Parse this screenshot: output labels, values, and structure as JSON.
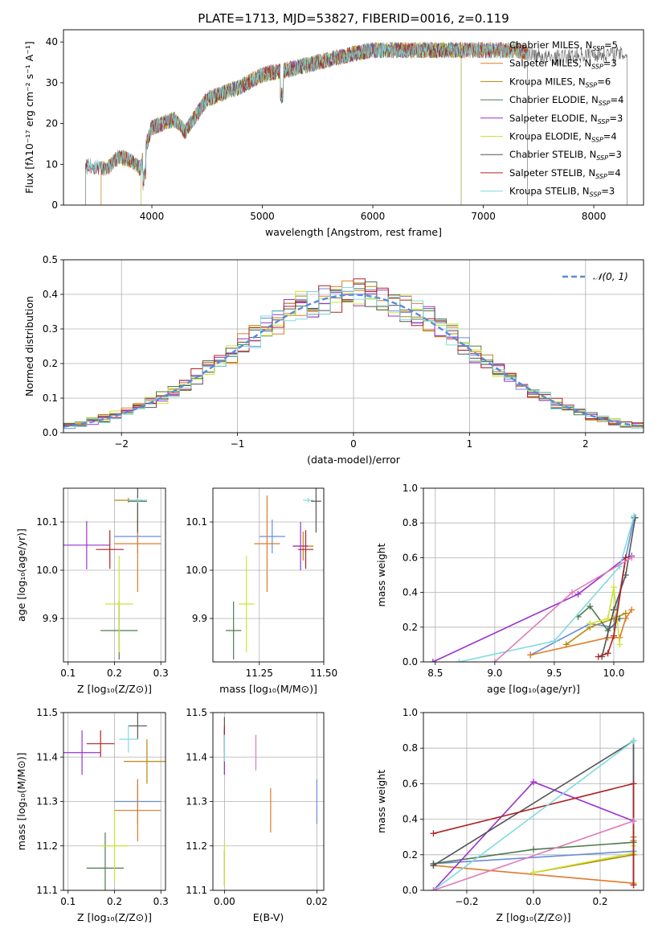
{
  "figure_title": "PLATE=1713, MJD=53827, FIBERID=0016, z=0.119",
  "series_colors": [
    "#6b8cdb",
    "#e07b2a",
    "#b8860b",
    "#4f7a4f",
    "#9932cc",
    "#c8e632",
    "#555555",
    "#b22222",
    "#7fdce0"
  ],
  "chart_data": [
    {
      "id": "spectrum",
      "type": "line",
      "title": "PLATE=1713, MJD=53827, FIBERID=0016, z=0.119",
      "xlabel": "wavelength [Angstrom, rest frame]",
      "ylabel": "Flux [fλ10⁻¹⁷ erg cm⁻² s⁻¹ A⁻¹]",
      "xlim": [
        3200,
        8450
      ],
      "ylim": [
        0,
        43
      ],
      "xticks": [
        4000,
        5000,
        6000,
        7000,
        8000
      ],
      "yticks": [
        0,
        10,
        20,
        30,
        40
      ],
      "grid": false,
      "legend_position": "right",
      "continuum_knots": [
        [
          3400,
          9.5
        ],
        [
          3600,
          9
        ],
        [
          3700,
          12
        ],
        [
          3800,
          11
        ],
        [
          3900,
          9
        ],
        [
          3950,
          15
        ],
        [
          4000,
          19
        ],
        [
          4200,
          21
        ],
        [
          4300,
          18
        ],
        [
          4500,
          26
        ],
        [
          4800,
          29
        ],
        [
          5000,
          32
        ],
        [
          5200,
          33
        ],
        [
          5500,
          35
        ],
        [
          5800,
          37
        ],
        [
          6000,
          38
        ],
        [
          6500,
          38
        ],
        [
          7000,
          38
        ],
        [
          7300,
          38
        ],
        [
          7600,
          36
        ],
        [
          8000,
          37
        ],
        [
          8300,
          37
        ]
      ],
      "series": [
        {
          "label": "Chabrier MILES, N",
          "sub": "SSP",
          "suffix": "=5",
          "wmin": 3540,
          "wmax": 7400
        },
        {
          "label": "Salpeter MILES, N",
          "sub": "SSP",
          "suffix": "=3",
          "wmin": 3540,
          "wmax": 7400
        },
        {
          "label": "Kroupa MILES, N",
          "sub": "SSP",
          "suffix": "=6",
          "wmin": 3540,
          "wmax": 7400
        },
        {
          "label": "Chabrier ELODIE, N",
          "sub": "SSP",
          "suffix": "=4",
          "wmin": 3900,
          "wmax": 6800
        },
        {
          "label": "Salpeter ELODIE, N",
          "sub": "SSP",
          "suffix": "=3",
          "wmin": 3900,
          "wmax": 6800
        },
        {
          "label": "Kroupa ELODIE, N",
          "sub": "SSP",
          "suffix": "=4",
          "wmin": 3900,
          "wmax": 6800
        },
        {
          "label": "Chabrier STELIB, N",
          "sub": "SSP",
          "suffix": "=3",
          "wmin": 3400,
          "wmax": 8300
        },
        {
          "label": "Salpeter STELIB, N",
          "sub": "SSP",
          "suffix": "=4",
          "wmin": 3400,
          "wmax": 7400
        },
        {
          "label": "Kroupa STELIB, N",
          "sub": "SSP",
          "suffix": "=3",
          "wmin": 3400,
          "wmax": 7400
        }
      ]
    },
    {
      "id": "residuals",
      "type": "histogram",
      "xlabel": "(data-model)/error",
      "ylabel": "Normed distribution",
      "xlim": [
        -2.5,
        2.5
      ],
      "ylim": [
        0,
        0.5
      ],
      "xticks": [
        -2,
        -1,
        0,
        1,
        2
      ],
      "yticks": [
        0.0,
        0.1,
        0.2,
        0.3,
        0.4,
        0.5
      ],
      "grid": true,
      "legend_entry": "𝒩(0, 1)",
      "legend_position": "top-right",
      "bin_width": 0.1
    },
    {
      "id": "age_Z",
      "type": "errorbar",
      "xlabel": "Z [log₁₀(Z/Z⊙)]",
      "ylabel": "age  [log₁₀(age/yr)]",
      "xlim": [
        0.09,
        0.31
      ],
      "ylim": [
        9.81,
        10.17
      ],
      "xticks": [
        0.1,
        0.2,
        0.3
      ],
      "yticks": [
        9.9,
        10.0,
        10.1
      ],
      "grid": true,
      "points": [
        {
          "x": 0.25,
          "y": 10.07,
          "xerr": 0.05,
          "yerr": 0.035
        },
        {
          "x": 0.25,
          "y": 10.055,
          "xerr": 0.05,
          "yerr": 0.1
        },
        {
          "x": 0.23,
          "y": 10.145,
          "xerr": 0.03,
          "yerr": 0.005
        },
        {
          "x": 0.21,
          "y": 9.875,
          "xerr": 0.04,
          "yerr": 0.06
        },
        {
          "x": 0.14,
          "y": 10.052,
          "xerr": 0.05,
          "yerr": 0.05
        },
        {
          "x": 0.21,
          "y": 9.93,
          "xerr": 0.03,
          "yerr": 0.1
        },
        {
          "x": 0.25,
          "y": 10.143,
          "xerr": 0.02,
          "yerr": 0.065
        },
        {
          "x": 0.19,
          "y": 10.043,
          "xerr": 0.03,
          "yerr": 0.04
        },
        {
          "x": 0.25,
          "y": 10.145,
          "xerr": 0.02,
          "yerr": 0.005
        }
      ]
    },
    {
      "id": "age_mass",
      "type": "errorbar",
      "xlabel": "mass [log₁₀(M/M⊙)]",
      "ylabel": "",
      "xlim": [
        11.07,
        11.5
      ],
      "ylim": [
        9.81,
        10.17
      ],
      "xticks": [
        11.25,
        11.5
      ],
      "yticks": [
        9.9,
        10.0,
        10.1
      ],
      "grid": true,
      "points": [
        {
          "x": 11.3,
          "y": 10.07,
          "xerr": 0.05,
          "yerr": 0.035
        },
        {
          "x": 11.28,
          "y": 10.055,
          "xerr": 0.05,
          "yerr": 0.1
        },
        {
          "x": 11.42,
          "y": 10.05,
          "xerr": 0.04,
          "yerr": 0.03
        },
        {
          "x": 11.15,
          "y": 9.875,
          "xerr": 0.03,
          "yerr": 0.06
        },
        {
          "x": 11.41,
          "y": 10.05,
          "xerr": 0.03,
          "yerr": 0.05
        },
        {
          "x": 11.2,
          "y": 9.93,
          "xerr": 0.03,
          "yerr": 0.1
        },
        {
          "x": 11.47,
          "y": 10.143,
          "xerr": 0.02,
          "yerr": 0.065
        },
        {
          "x": 11.43,
          "y": 10.043,
          "xerr": 0.03,
          "yerr": 0.04
        },
        {
          "x": 11.44,
          "y": 10.145,
          "xerr": 0.02,
          "yerr": 0.005
        }
      ]
    },
    {
      "id": "weight_age",
      "type": "line",
      "xlabel": "age  [log₁₀(age/yr)]",
      "ylabel": "mass weight",
      "xlim": [
        8.4,
        10.25
      ],
      "ylim": [
        0,
        1
      ],
      "xticks": [
        8.5,
        9.0,
        9.5,
        10.0
      ],
      "yticks": [
        0.0,
        0.2,
        0.4,
        0.6,
        0.8,
        1.0
      ],
      "grid": true,
      "series": [
        [
          [
            9.3,
            0.04
          ],
          [
            9.8,
            0.22
          ],
          [
            10.0,
            0.2
          ],
          [
            10.1,
            0.6
          ],
          [
            10.17,
            0.83
          ]
        ],
        [
          [
            9.3,
            0.04
          ],
          [
            9.95,
            0.14
          ],
          [
            10.05,
            0.14
          ],
          [
            10.1,
            0.25
          ],
          [
            10.15,
            0.3
          ]
        ],
        [
          [
            9.6,
            0.1
          ],
          [
            9.8,
            0.2
          ],
          [
            10.0,
            0.25
          ],
          [
            10.1,
            0.28
          ]
        ],
        [
          [
            9.7,
            0.26
          ],
          [
            9.8,
            0.32
          ],
          [
            9.95,
            0.18
          ],
          [
            10.05,
            0.25
          ]
        ],
        [
          [
            8.48,
            0.0
          ],
          [
            9.7,
            0.39
          ],
          [
            10.1,
            0.6
          ],
          [
            10.15,
            0.61
          ]
        ],
        [
          [
            9.8,
            0.22
          ],
          [
            9.95,
            0.25
          ],
          [
            10.0,
            0.43
          ],
          [
            10.05,
            0.1
          ]
        ],
        [
          [
            9.9,
            0.03
          ],
          [
            10.0,
            0.3
          ],
          [
            10.1,
            0.5
          ],
          [
            10.18,
            0.83
          ]
        ],
        [
          [
            9.87,
            0.03
          ],
          [
            9.95,
            0.05
          ],
          [
            10.0,
            0.15
          ],
          [
            10.1,
            0.6
          ]
        ],
        [
          [
            8.7,
            0.0
          ],
          [
            9.5,
            0.12
          ],
          [
            10.05,
            0.55
          ],
          [
            10.17,
            0.84
          ]
        ],
        [
          [
            9.0,
            0.0
          ],
          [
            9.65,
            0.4
          ],
          [
            10.15,
            0.6
          ]
        ]
      ]
    },
    {
      "id": "mass_Z",
      "type": "errorbar",
      "xlabel": "Z [log₁₀(Z/Z⊙)]",
      "ylabel": "mass [log₁₀(M/M⊙)]",
      "xlim": [
        0.09,
        0.31
      ],
      "ylim": [
        11.1,
        11.5
      ],
      "xticks": [
        0.1,
        0.2,
        0.3
      ],
      "yticks": [
        11.1,
        11.2,
        11.3,
        11.4,
        11.5
      ],
      "grid": true,
      "points": [
        {
          "x": 0.25,
          "y": 11.3,
          "xerr": 0.05,
          "yerr": 0.05
        },
        {
          "x": 0.25,
          "y": 11.28,
          "xerr": 0.05,
          "yerr": 0.07
        },
        {
          "x": 0.27,
          "y": 11.39,
          "xerr": 0.05,
          "yerr": 0.05
        },
        {
          "x": 0.18,
          "y": 11.15,
          "xerr": 0.04,
          "yerr": 0.08
        },
        {
          "x": 0.13,
          "y": 11.41,
          "xerr": 0.04,
          "yerr": 0.05
        },
        {
          "x": 0.2,
          "y": 11.2,
          "xerr": 0.03,
          "yerr": 0.08
        },
        {
          "x": 0.25,
          "y": 11.47,
          "xerr": 0.02,
          "yerr": 0.03
        },
        {
          "x": 0.17,
          "y": 11.43,
          "xerr": 0.03,
          "yerr": 0.03
        },
        {
          "x": 0.23,
          "y": 11.44,
          "xerr": 0.02,
          "yerr": 0.03
        }
      ]
    },
    {
      "id": "mass_ebv",
      "type": "errorbar",
      "xlabel": "E(B-V)",
      "ylabel": "",
      "xlim": [
        -0.0025,
        0.0215
      ],
      "ylim": [
        11.1,
        11.5
      ],
      "xticks": [
        0.0,
        0.02
      ],
      "tick_labels": [
        "0.00",
        "0.02"
      ],
      "yticks": [
        11.1,
        11.2,
        11.3,
        11.4,
        11.5
      ],
      "grid": true,
      "points": [
        {
          "x": 0.02,
          "y": 11.3,
          "xerr": 0,
          "yerr": 0.05
        },
        {
          "x": 0.01,
          "y": 11.28,
          "xerr": 0,
          "yerr": 0.05
        },
        {
          "x": 0.0,
          "y": 11.41,
          "xerr": 0,
          "yerr": 0.05
        },
        {
          "x": 0.0,
          "y": 11.15,
          "xerr": 0,
          "yerr": 0.04
        },
        {
          "x": 0.0,
          "y": 11.41,
          "xerr": 0,
          "yerr": 0.05
        },
        {
          "x": 0.0,
          "y": 11.16,
          "xerr": 0,
          "yerr": 0.05
        },
        {
          "x": 0.0,
          "y": 11.46,
          "xerr": 0,
          "yerr": 0.03
        },
        {
          "x": 0.0,
          "y": 11.44,
          "xerr": 0,
          "yerr": 0.03
        },
        {
          "x": 0.0,
          "y": 11.42,
          "xerr": 0,
          "yerr": 0.03
        }
      ],
      "extra_points": [
        {
          "x": 0.0068,
          "y": 11.41,
          "xerr": 0,
          "yerr": 0.04,
          "color": "#e07bb8"
        }
      ]
    },
    {
      "id": "weight_Z",
      "type": "line",
      "xlabel": "Z [log₁₀(Z/Z⊙)]",
      "ylabel": "mass weight",
      "xlim": [
        -0.33,
        0.33
      ],
      "ylim": [
        0,
        1
      ],
      "xticks": [
        -0.2,
        0.0,
        0.2
      ],
      "yticks": [
        0.0,
        0.2,
        0.4,
        0.6,
        0.8,
        1.0
      ],
      "grid": true,
      "series": [
        [
          [
            -0.3,
            0.15
          ],
          [
            0.3,
            0.22
          ],
          [
            0.3,
            0.84
          ]
        ],
        [
          [
            -0.3,
            0.14
          ],
          [
            0.3,
            0.04
          ],
          [
            0.3,
            0.3
          ]
        ],
        [
          [
            0.0,
            0.1
          ],
          [
            0.3,
            0.2
          ],
          [
            0.3,
            0.28
          ]
        ],
        [
          [
            -0.3,
            0.15
          ],
          [
            0.0,
            0.23
          ],
          [
            0.3,
            0.27
          ]
        ],
        [
          [
            -0.3,
            0.0
          ],
          [
            0.0,
            0.61
          ],
          [
            0.3,
            0.39
          ]
        ],
        [
          [
            0.0,
            0.1
          ],
          [
            0.3,
            0.21
          ],
          [
            0.3,
            0.25
          ]
        ],
        [
          [
            -0.3,
            0.14
          ],
          [
            0.3,
            0.84
          ],
          [
            0.3,
            0.03
          ]
        ],
        [
          [
            -0.3,
            0.32
          ],
          [
            0.3,
            0.6
          ],
          [
            0.3,
            0.03
          ]
        ],
        [
          [
            -0.3,
            0.0
          ],
          [
            0.3,
            0.84
          ]
        ],
        [
          [
            -0.3,
            0.0
          ],
          [
            0.3,
            0.39
          ]
        ]
      ]
    }
  ]
}
